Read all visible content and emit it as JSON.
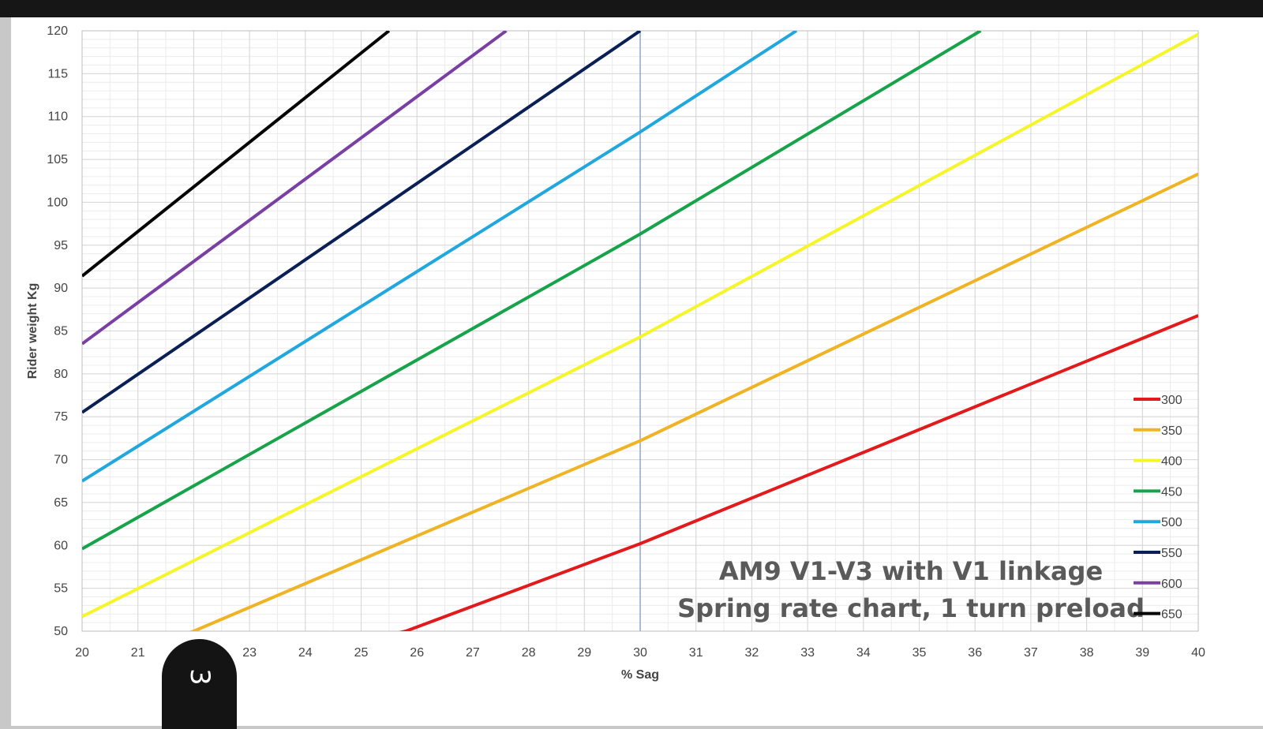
{
  "page": {
    "page_number": "3"
  },
  "chart_data": {
    "type": "line",
    "xlabel": "% Sag",
    "ylabel": "Rider weight Kg",
    "xlim": [
      20,
      40
    ],
    "ylim": [
      50,
      120
    ],
    "xticks": [
      20,
      21,
      22,
      23,
      24,
      25,
      26,
      27,
      28,
      29,
      30,
      31,
      32,
      33,
      34,
      35,
      36,
      37,
      38,
      39,
      40
    ],
    "yticks": [
      50,
      55,
      60,
      65,
      70,
      75,
      80,
      85,
      90,
      95,
      100,
      105,
      110,
      115,
      120
    ],
    "minor_x_step": 0.5,
    "minor_y_step": 1,
    "grid": true,
    "reference_line_x": 30,
    "annotation": [
      "AM9 V1-V3 with V1 linkage",
      "Spring rate chart, 1 turn preload"
    ],
    "legend_position": "bottom-right",
    "series": [
      {
        "name": "300",
        "color": "#e31a1c",
        "x": [
          20,
          25.8,
          30,
          40
        ],
        "y": [
          41.5,
          50,
          60.2,
          86.8
        ]
      },
      {
        "name": "350",
        "color": "#f0b323",
        "x": [
          20,
          22,
          30,
          40
        ],
        "y": [
          45.5,
          50,
          72.2,
          103.3
        ]
      },
      {
        "name": "400",
        "color": "#f5f52a",
        "x": [
          20,
          30,
          40
        ],
        "y": [
          51.7,
          84.3,
          119.6
        ]
      },
      {
        "name": "450",
        "color": "#16a34a",
        "x": [
          20,
          30,
          36.1
        ],
        "y": [
          59.6,
          96.3,
          120
        ]
      },
      {
        "name": "500",
        "color": "#1fa7de",
        "x": [
          20,
          30,
          32.8
        ],
        "y": [
          67.5,
          108.2,
          120
        ]
      },
      {
        "name": "550",
        "color": "#0a1f55",
        "x": [
          20,
          30
        ],
        "y": [
          75.5,
          120
        ]
      },
      {
        "name": "600",
        "color": "#7a3fa3",
        "x": [
          20,
          27.6
        ],
        "y": [
          83.5,
          120
        ]
      },
      {
        "name": "650",
        "color": "#050505",
        "x": [
          20,
          25.5
        ],
        "y": [
          91.4,
          120
        ]
      }
    ]
  }
}
